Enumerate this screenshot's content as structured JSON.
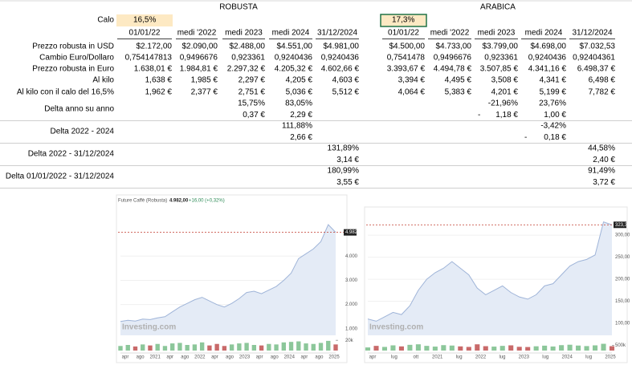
{
  "sheet": {
    "headers": {
      "robusta": "ROBUSTA",
      "arabica": "ARABICA"
    },
    "calo": {
      "label": "Calo",
      "robusta": "16,5%",
      "arabica": "17,3%"
    },
    "columns": {
      "robusta": [
        "01/01/22",
        "medi '2022",
        "medi 2023",
        "medi 2024",
        "31/12/2024"
      ],
      "arabica": [
        "01/01/22",
        "medi '2022",
        "medi 2023",
        "medi 2024",
        "31/12/2024"
      ]
    },
    "rows": [
      {
        "label": "Prezzo robusta in USD",
        "robusta": [
          "$2.172,00",
          "$2.090,00",
          "$2.488,00",
          "$4.551,00",
          "$4.981,00"
        ],
        "arabica": [
          "$4.500,00",
          "$4.733,00",
          "$3.799,00",
          "$4.698,00",
          "$7.032,53"
        ]
      },
      {
        "label": "Cambio Euro/Dollaro",
        "robusta": [
          "0,754147813",
          "0,9496676",
          "0,923361",
          "0,9240436",
          "0,9240436"
        ],
        "arabica": [
          "0,7541478",
          "0,9496676",
          "0,923361",
          "0,9240436",
          "0,92404361"
        ]
      },
      {
        "label": "Prezzo robusta in Euro",
        "robusta": [
          "1.638,01 €",
          "1.984,81 €",
          "2.297,32 €",
          "4.205,32 €",
          "4.602,66 €"
        ],
        "arabica": [
          "3.393,67 €",
          "4.494,78 €",
          "3.507,85 €",
          "4.341,16 €",
          "6.498,37 €"
        ]
      },
      {
        "label": "Al kilo",
        "robusta": [
          "1,638 €",
          "1,985 €",
          "2,297 €",
          "4,205 €",
          "4,603 €"
        ],
        "arabica": [
          "3,394 €",
          "4,495 €",
          "3,508 €",
          "4,341 €",
          "6,498 €"
        ]
      },
      {
        "label": "Al kilo con il calo del 16,5%",
        "robusta": [
          "1,962 €",
          "2,377 €",
          "2,751 €",
          "5,036 €",
          "5,512 €"
        ],
        "arabica": [
          "4,064 €",
          "5,383 €",
          "4,201 €",
          "5,199 €",
          "7,782 €"
        ]
      }
    ],
    "deltas": [
      {
        "label": "Delta anno su anno",
        "lines": [
          {
            "robusta": [
              null,
              null,
              "15,75%",
              "83,05%",
              null
            ],
            "arabica": [
              null,
              null,
              "-21,96%",
              "23,76%",
              null
            ]
          },
          {
            "robusta": [
              null,
              null,
              "0,37 €",
              "2,29 €",
              null
            ],
            "arabica": [
              null,
              null,
              {
                "sign": "-",
                "amount": "1,18 €"
              },
              "1,00 €",
              null
            ]
          }
        ]
      },
      {
        "label": "Delta 2022 - 2024",
        "lines": [
          {
            "robusta": [
              null,
              null,
              null,
              "111,88%",
              null
            ],
            "arabica": [
              null,
              null,
              null,
              "-3,42%",
              null
            ]
          },
          {
            "robusta": [
              null,
              null,
              null,
              "2,66 €",
              null
            ],
            "arabica": [
              null,
              null,
              null,
              {
                "sign": "-",
                "amount": "0,18 €"
              },
              null
            ]
          }
        ]
      },
      {
        "label": "Delta 2022 - 31/12/2024",
        "lines": [
          {
            "robusta": [
              null,
              null,
              null,
              null,
              "131,89%"
            ],
            "arabica": [
              null,
              null,
              null,
              null,
              "44,58%"
            ]
          },
          {
            "robusta": [
              null,
              null,
              null,
              null,
              "3,14 €"
            ],
            "arabica": [
              null,
              null,
              null,
              null,
              "2,40 €"
            ]
          }
        ]
      },
      {
        "label": "Delta 01/01/2022 - 31/12/2024",
        "lines": [
          {
            "robusta": [
              null,
              null,
              null,
              null,
              "180,99%"
            ],
            "arabica": [
              null,
              null,
              null,
              null,
              "91,49%"
            ]
          },
          {
            "robusta": [
              null,
              null,
              null,
              null,
              "3,55 €"
            ],
            "arabica": [
              null,
              null,
              null,
              null,
              "3,72 €"
            ]
          }
        ]
      }
    ]
  },
  "charts": [
    {
      "type": "line",
      "title": "Future Caffè (Robusta)",
      "change": "+16,00 (+0,32%)",
      "watermark": "Investing.com",
      "color": "#9fb4d8",
      "area_color": "#e4ebf6",
      "last": {
        "value": 4982,
        "label": "4.982,00"
      },
      "xtick_labels": [
        "apr",
        "ago",
        "2021",
        "apr",
        "ago",
        "2022",
        "apr",
        "ago",
        "2023",
        "apr",
        "ago",
        "2024",
        "apr",
        "ago",
        "2025"
      ],
      "values": [
        1300,
        1350,
        1320,
        1400,
        1380,
        1450,
        1500,
        1700,
        1900,
        2050,
        2200,
        2300,
        2150,
        2000,
        1900,
        2050,
        2250,
        2500,
        2550,
        2450,
        2600,
        2750,
        3000,
        3300,
        3900,
        4100,
        4300,
        4600,
        5300,
        4982
      ],
      "ylim": [
        730,
        6130
      ],
      "yticks": [
        {
          "value": 1000,
          "label": "1.000"
        },
        {
          "value": 2000,
          "label": "2.000"
        },
        {
          "value": 3000,
          "label": "3.000"
        },
        {
          "value": 4000,
          "label": "4.000"
        }
      ],
      "volumes": [
        9000,
        11000,
        8000,
        12000,
        10000,
        13000,
        9000,
        14000,
        15000,
        11000,
        12000,
        16000,
        10000,
        13000,
        9000,
        12000,
        14000,
        15000,
        11000,
        10000,
        13000,
        12000,
        16000,
        17000,
        18000,
        14000,
        13000,
        15000,
        19000,
        12000
      ],
      "volume_ylim": [
        0,
        22000
      ],
      "volume_ticks": [
        {
          "value": 20000,
          "label": "20k"
        }
      ]
    },
    {
      "type": "line",
      "watermark": "Investing.com",
      "color": "#9fb4d8",
      "area_color": "#e4ebf6",
      "last": {
        "value": 323.35,
        "label": "323,35"
      },
      "xtick_labels": [
        "apr",
        "lug",
        "ott",
        "2021",
        "lug",
        "2022",
        "lug",
        "2023",
        "lug",
        "2024",
        "lug",
        "2025"
      ],
      "values": [
        110,
        105,
        115,
        125,
        120,
        140,
        175,
        200,
        215,
        225,
        240,
        225,
        210,
        180,
        165,
        175,
        185,
        170,
        160,
        155,
        165,
        185,
        190,
        210,
        230,
        240,
        245,
        255,
        330,
        323.35
      ],
      "ylim": [
        73,
        342
      ],
      "yticks": [
        {
          "value": 100,
          "label": "100,00"
        },
        {
          "value": 150,
          "label": "150,00"
        },
        {
          "value": 200,
          "label": "200,00"
        },
        {
          "value": 250,
          "label": "250,00"
        },
        {
          "value": 300,
          "label": "300,00"
        }
      ],
      "volumes": [
        300000,
        450000,
        350000,
        500000,
        400000,
        550000,
        600000,
        450000,
        380000,
        520000,
        480000,
        400000,
        350000,
        600000,
        420000,
        380000,
        450000,
        500000,
        360000,
        340000,
        410000,
        470000,
        390000,
        520000,
        560000,
        480000,
        430000,
        500000,
        650000,
        420000
      ],
      "volume_ylim": [
        0,
        1000000
      ],
      "volume_ticks": [
        {
          "value": 500000,
          "label": "500k"
        }
      ]
    }
  ]
}
